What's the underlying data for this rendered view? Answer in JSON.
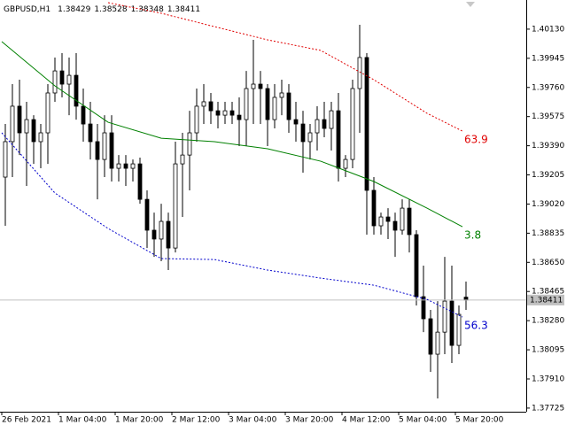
{
  "chart_data": {
    "type": "candlestick",
    "symbol": "GBPUSD,H1",
    "x": [
      1,
      3,
      5,
      7,
      9,
      11,
      13,
      15,
      17,
      19,
      21,
      23,
      25,
      27,
      29,
      31,
      33,
      35,
      37,
      39,
      41,
      43,
      45,
      47,
      49,
      51,
      53,
      55,
      57,
      59,
      61,
      63,
      65,
      67,
      69,
      71,
      73,
      75,
      77,
      79,
      81,
      83,
      85,
      87,
      89,
      91,
      93,
      95,
      97,
      99,
      101,
      103,
      105,
      107,
      109,
      111,
      113,
      115,
      117,
      119,
      121,
      123,
      125,
      127,
      129,
      131
    ],
    "open": [
      1.39191,
      1.39416,
      1.39641,
      1.39472,
      1.39556,
      1.39416,
      1.39472,
      1.39725,
      1.39865,
      1.39781,
      1.39837,
      1.39641,
      1.39528,
      1.39416,
      1.39303,
      1.39472,
      1.39247,
      1.39275,
      1.39247,
      1.39275,
      1.3905,
      1.38854,
      1.38798,
      1.3891,
      1.38741,
      1.39275,
      1.39331,
      1.39472,
      1.39641,
      1.39669,
      1.39612,
      1.39584,
      1.39612,
      1.39584,
      1.39556,
      1.39753,
      1.39781,
      1.39753,
      1.39556,
      1.39697,
      1.39725,
      1.39556,
      1.39528,
      1.39416,
      1.39472,
      1.39556,
      1.395,
      1.39612,
      1.39247,
      1.39303,
      1.39753,
      1.3995,
      1.39107,
      1.38882,
      1.38938,
      1.3891,
      1.38854,
      1.38994,
      1.38826,
      1.38432,
      1.38292,
      1.38067,
      1.38207,
      1.38404,
      1.38123,
      1.38429
    ],
    "high": [
      1.39528,
      1.39781,
      1.39809,
      1.39669,
      1.39584,
      1.39528,
      1.39781,
      1.3995,
      1.39978,
      1.3995,
      1.39978,
      1.39753,
      1.39669,
      1.39528,
      1.39584,
      1.39584,
      1.39331,
      1.39331,
      1.39303,
      1.39315,
      1.39107,
      1.38966,
      1.39022,
      1.38966,
      1.39416,
      1.39472,
      1.39612,
      1.39753,
      1.39781,
      1.39725,
      1.39669,
      1.39669,
      1.39669,
      1.39697,
      1.39865,
      1.40062,
      1.39865,
      1.39781,
      1.39781,
      1.39809,
      1.39781,
      1.39669,
      1.39612,
      1.39528,
      1.39641,
      1.39669,
      1.39669,
      1.39725,
      1.39331,
      1.39809,
      1.40158,
      1.39978,
      1.39191,
      1.38966,
      1.38994,
      1.38966,
      1.3905,
      1.3905,
      1.38854,
      1.38629,
      1.38348,
      1.38404,
      1.38685,
      1.38629,
      1.38376,
      1.38528
    ],
    "low": [
      1.38882,
      1.39191,
      1.39331,
      1.39135,
      1.39275,
      1.39247,
      1.39275,
      1.39669,
      1.39697,
      1.39584,
      1.39556,
      1.39416,
      1.39303,
      1.3905,
      1.39191,
      1.39163,
      1.39163,
      1.39135,
      1.39163,
      1.39022,
      1.38741,
      1.38685,
      1.38657,
      1.38601,
      1.38713,
      1.38938,
      1.39107,
      1.39416,
      1.39528,
      1.39528,
      1.395,
      1.39528,
      1.39528,
      1.39388,
      1.39388,
      1.39528,
      1.39528,
      1.39388,
      1.395,
      1.39584,
      1.39472,
      1.39416,
      1.39219,
      1.39303,
      1.3936,
      1.39444,
      1.3936,
      1.39163,
      1.39191,
      1.39247,
      1.39472,
      1.38826,
      1.38826,
      1.38826,
      1.38798,
      1.38685,
      1.38826,
      1.38713,
      1.38376,
      1.38207,
      1.37955,
      1.37786,
      1.38067,
      1.38011,
      1.38067,
      1.38348
    ],
    "close": [
      1.39416,
      1.39641,
      1.39472,
      1.39556,
      1.39416,
      1.39472,
      1.39725,
      1.39865,
      1.39781,
      1.39837,
      1.39641,
      1.39528,
      1.39416,
      1.39303,
      1.39472,
      1.39247,
      1.39275,
      1.39247,
      1.39275,
      1.3905,
      1.38854,
      1.38798,
      1.3891,
      1.38741,
      1.39275,
      1.39331,
      1.39472,
      1.39641,
      1.39669,
      1.39612,
      1.39584,
      1.39612,
      1.39584,
      1.39556,
      1.39753,
      1.39781,
      1.39753,
      1.39556,
      1.39697,
      1.39725,
      1.39556,
      1.39528,
      1.39416,
      1.39472,
      1.39556,
      1.395,
      1.39612,
      1.39247,
      1.39303,
      1.39753,
      1.3995,
      1.39107,
      1.38882,
      1.38938,
      1.3891,
      1.38854,
      1.38994,
      1.38826,
      1.38432,
      1.38292,
      1.38067,
      1.38207,
      1.38404,
      1.38123,
      1.3832,
      1.38411
    ],
    "series": [
      {
        "end_label": "3.8",
        "color": "#008000",
        "dash": false,
        "x": [
          0,
          15,
          30,
          45,
          60,
          75,
          90,
          105,
          120,
          130
        ],
        "values": [
          1.40051,
          1.3977,
          1.39539,
          1.39438,
          1.39416,
          1.39371,
          1.39292,
          1.39163,
          1.38994,
          1.38876
        ]
      },
      {
        "end_label": "63.9",
        "color": "#e00000",
        "dash": true,
        "x": [
          0,
          15,
          30,
          45,
          60,
          75,
          90,
          105,
          120,
          130
        ],
        "values": [
          null,
          null,
          1.40298,
          1.40231,
          1.40146,
          1.40062,
          1.39995,
          1.39809,
          1.39596,
          1.39483
        ]
      },
      {
        "end_label": "56.3",
        "color": "#0000cc",
        "dash": true,
        "x": [
          0,
          15,
          30,
          45,
          60,
          75,
          90,
          105,
          120,
          130
        ],
        "values": [
          1.39472,
          1.3909,
          1.38865,
          1.38674,
          1.38668,
          1.38601,
          1.3855,
          1.38505,
          1.38415,
          1.38303
        ]
      }
    ],
    "xlim": [
      -0.5,
      148
    ],
    "xticks": [
      {
        "value": 0,
        "label": "26 Feb 2021"
      },
      {
        "value": 16,
        "label": "1 Mar 04:00"
      },
      {
        "value": 32,
        "label": "1 Mar 20:00"
      },
      {
        "value": 48,
        "label": "2 Mar 12:00"
      },
      {
        "value": 64,
        "label": "3 Mar 04:00"
      },
      {
        "value": 80,
        "label": "3 Mar 20:00"
      },
      {
        "value": 96,
        "label": "4 Mar 12:00"
      },
      {
        "value": 112,
        "label": "5 Mar 04:00"
      },
      {
        "value": 128,
        "label": "5 Mar 20:00"
      }
    ],
    "ylim": [
      1.37702,
      1.40315
    ],
    "yticks": [
      {
        "value": 1.4013,
        "label": "1.40130"
      },
      1.39945,
      {
        "value": 1.3976,
        "label": "1.39760"
      },
      1.39575,
      {
        "value": 1.3939,
        "label": "1.39390"
      },
      1.39205,
      {
        "value": 1.3902,
        "label": "1.39020"
      },
      1.38835,
      {
        "value": 1.3865,
        "label": "1.38650"
      },
      1.38465,
      {
        "value": 1.3828,
        "label": "1.38280"
      },
      1.38095,
      {
        "value": 1.3791,
        "label": "1.37910"
      },
      1.37725
    ],
    "grid": false
  }
}
